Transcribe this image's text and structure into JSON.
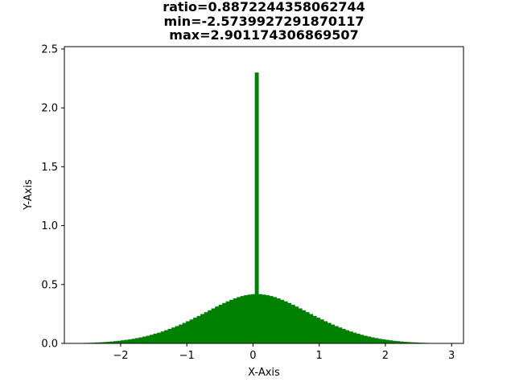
{
  "chart_data": {
    "type": "bar",
    "title_lines": [
      "ratio=0.8872244358062744",
      "min=-2.5739927291870117",
      "max=2.901174306869507"
    ],
    "xlabel": "X-Axis",
    "ylabel": "Y-Axis",
    "xlim": [
      -2.85,
      3.18
    ],
    "ylim": [
      0,
      2.52
    ],
    "xticks": [
      -2,
      -1,
      0,
      1,
      2,
      3
    ],
    "yticks": [
      0.0,
      0.5,
      1.0,
      1.5,
      2.0,
      2.5
    ],
    "xtick_labels": [
      "−2",
      "−1",
      "0",
      "1",
      "2",
      "3"
    ],
    "ytick_labels": [
      "0.0",
      "0.5",
      "1.0",
      "1.5",
      "2.0",
      "2.5"
    ],
    "bar_color": "#008000",
    "bin_width": 0.0548,
    "bins_x": [
      -2.546,
      -2.491,
      -2.436,
      -2.382,
      -2.327,
      -2.272,
      -2.217,
      -2.163,
      -2.108,
      -2.053,
      -1.998,
      -1.944,
      -1.889,
      -1.834,
      -1.779,
      -1.725,
      -1.67,
      -1.615,
      -1.56,
      -1.506,
      -1.451,
      -1.396,
      -1.341,
      -1.287,
      -1.232,
      -1.177,
      -1.122,
      -1.068,
      -1.013,
      -0.958,
      -0.903,
      -0.849,
      -0.794,
      -0.739,
      -0.684,
      -0.63,
      -0.575,
      -0.52,
      -0.465,
      -0.411,
      -0.356,
      -0.301,
      -0.246,
      -0.192,
      -0.137,
      -0.082,
      -0.027,
      0.027,
      0.082,
      0.137,
      0.192,
      0.246,
      0.301,
      0.356,
      0.411,
      0.465,
      0.52,
      0.575,
      0.63,
      0.684,
      0.739,
      0.794,
      0.849,
      0.903,
      0.958,
      1.013,
      1.068,
      1.122,
      1.177,
      1.232,
      1.287,
      1.341,
      1.396,
      1.451,
      1.506,
      1.56,
      1.615,
      1.67,
      1.725,
      1.779,
      1.834,
      1.889,
      1.944,
      1.998,
      2.053,
      2.108,
      2.163,
      2.217,
      2.272,
      2.327,
      2.382,
      2.436,
      2.491,
      2.546,
      2.6,
      2.655,
      2.71,
      2.765,
      2.819,
      2.874
    ],
    "values": [
      0.004,
      0.005,
      0.006,
      0.008,
      0.009,
      0.011,
      0.013,
      0.016,
      0.019,
      0.022,
      0.026,
      0.03,
      0.034,
      0.039,
      0.045,
      0.051,
      0.058,
      0.065,
      0.073,
      0.082,
      0.091,
      0.101,
      0.112,
      0.123,
      0.135,
      0.147,
      0.16,
      0.174,
      0.188,
      0.203,
      0.218,
      0.233,
      0.249,
      0.265,
      0.281,
      0.297,
      0.313,
      0.328,
      0.343,
      0.357,
      0.37,
      0.382,
      0.393,
      0.402,
      0.409,
      0.414,
      0.418,
      2.3,
      0.418,
      0.414,
      0.409,
      0.402,
      0.393,
      0.382,
      0.37,
      0.357,
      0.343,
      0.328,
      0.313,
      0.297,
      0.281,
      0.265,
      0.249,
      0.233,
      0.218,
      0.203,
      0.188,
      0.174,
      0.16,
      0.147,
      0.135,
      0.123,
      0.112,
      0.101,
      0.091,
      0.082,
      0.073,
      0.065,
      0.058,
      0.051,
      0.045,
      0.039,
      0.034,
      0.03,
      0.026,
      0.022,
      0.019,
      0.016,
      0.013,
      0.011,
      0.009,
      0.008,
      0.006,
      0.005,
      0.004,
      0.003,
      0.003,
      0.002,
      0.002,
      0.001
    ]
  }
}
